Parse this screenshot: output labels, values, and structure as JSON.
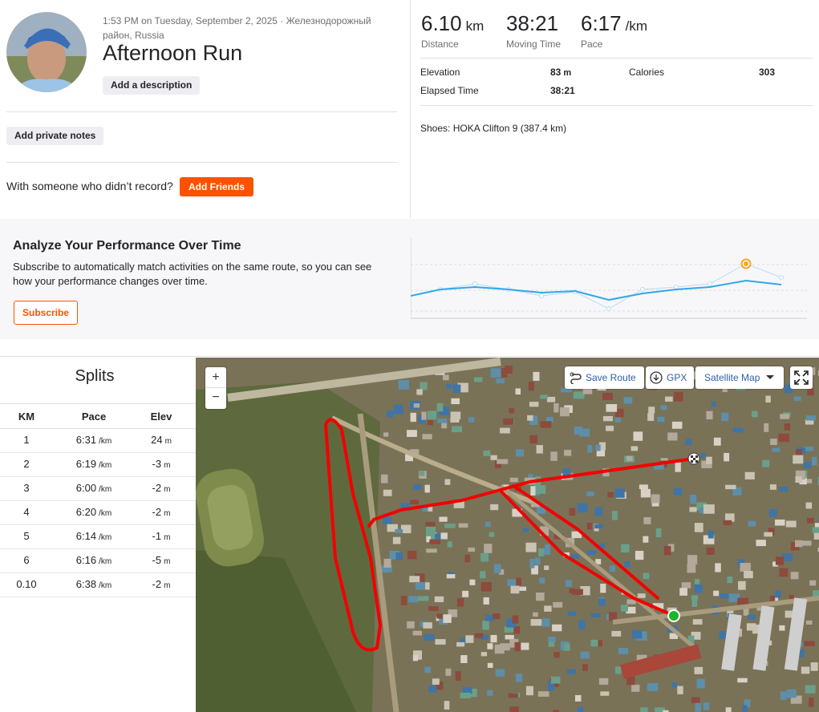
{
  "header": {
    "datetime": "1:53 PM on Tuesday, September 2, 2025 · Железнодорожный",
    "location": "район, Russia",
    "title": "Afternoon Run",
    "add_description": "Add a description"
  },
  "private_notes": "Add private notes",
  "friends": {
    "text": "With someone who didn’t record?",
    "button": "Add Friends"
  },
  "stats": [
    {
      "value": "6.10",
      "unit": "km",
      "label": "Distance"
    },
    {
      "value": "38:21",
      "label": "Moving Time"
    },
    {
      "value": "6:17",
      "unit": "/km",
      "label": "Pace"
    }
  ],
  "details": [
    {
      "label": "Elevation",
      "value": "83",
      "unit": "m"
    },
    {
      "label": "Calories",
      "value": "303"
    },
    {
      "label": "Elapsed Time",
      "value": "38:21"
    }
  ],
  "shoes": "Shoes: HOKA Clifton 9 (387.4 km)",
  "promo": {
    "title": "Analyze Your Performance Over Time",
    "text_1": "Subscribe to automatically match activities on the same route, so you can see",
    "text_2": "how your performance changes over time.",
    "button": "Subscribe"
  },
  "splits": {
    "title": "Splits",
    "headers": [
      "KM",
      "Pace",
      "Elev"
    ],
    "rows": [
      {
        "km": "1",
        "pace": "6:31",
        "pace_unit": "/km",
        "elev": "24",
        "elev_unit": "m"
      },
      {
        "km": "2",
        "pace": "6:19",
        "pace_unit": "/km",
        "elev": "-3",
        "elev_unit": "m"
      },
      {
        "km": "3",
        "pace": "6:00",
        "pace_unit": "/km",
        "elev": "-2",
        "elev_unit": "m"
      },
      {
        "km": "4",
        "pace": "6:20",
        "pace_unit": "/km",
        "elev": "-2",
        "elev_unit": "m"
      },
      {
        "km": "5",
        "pace": "6:14",
        "pace_unit": "/km",
        "elev": "-1",
        "elev_unit": "m"
      },
      {
        "km": "6",
        "pace": "6:16",
        "pace_unit": "/km",
        "elev": "-5",
        "elev_unit": "m"
      },
      {
        "km": "0.10",
        "pace": "6:38",
        "pace_unit": "/km",
        "elev": "-2",
        "elev_unit": "m"
      }
    ]
  },
  "map": {
    "zoom_in": "+",
    "zoom_out": "−",
    "save_route": "Save Route",
    "gpx": "GPX",
    "map_type": "Satellite Map"
  }
}
